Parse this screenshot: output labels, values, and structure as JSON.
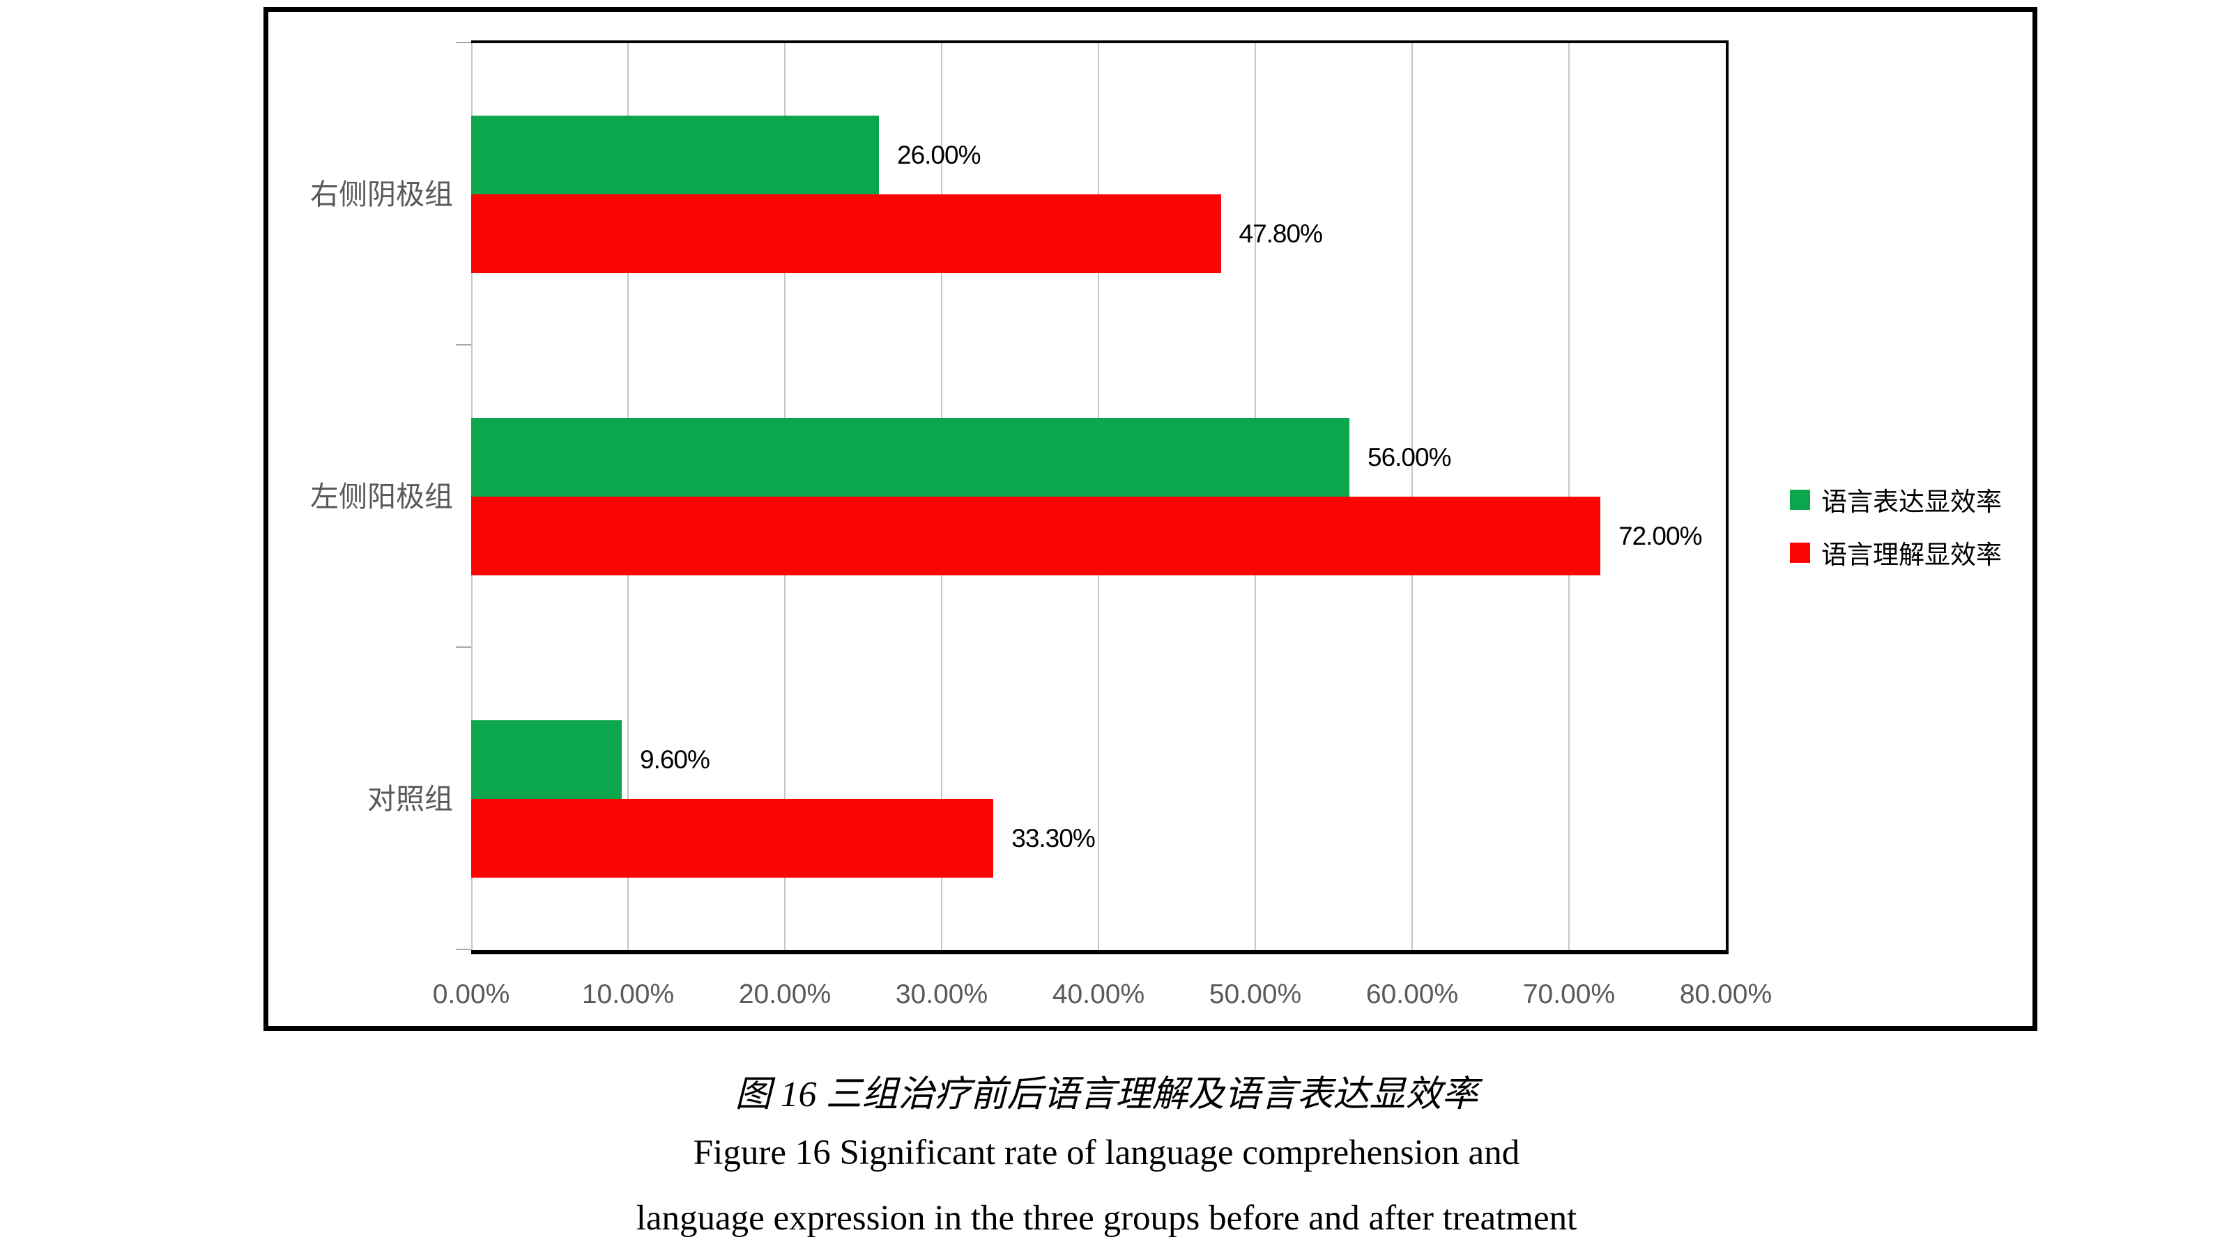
{
  "chart_data": {
    "type": "bar",
    "orientation": "horizontal",
    "title": "",
    "categories": [
      "右侧阴极组",
      "左侧阳极组",
      "对照组"
    ],
    "series": [
      {
        "name": "语言表达显效率",
        "color": "#0ca64c",
        "values": [
          26,
          56,
          9.6
        ],
        "labels": [
          "26.00%",
          "56.00%",
          "9.60%"
        ]
      },
      {
        "name": "语言理解显效率",
        "color": "#fb0505",
        "values": [
          47.8,
          72,
          33.3
        ],
        "labels": [
          "47.80%",
          "72.00%",
          "33.30%"
        ]
      }
    ],
    "x_axis": {
      "min": 0,
      "max": 80,
      "tick_step": 10,
      "tick_labels": [
        "0.00%",
        "10.00%",
        "20.00%",
        "30.00%",
        "40.00%",
        "50.00%",
        "60.00%",
        "70.00%",
        "80.00%"
      ]
    },
    "grid": true,
    "legend_position": "right"
  },
  "colors": {
    "series_green": "#0ca64c",
    "series_red": "#fb0505",
    "gridline": "#c6c6c6",
    "axis_text": "#595959",
    "border": "#000000"
  },
  "captions": {
    "chinese": "图 16 三组治疗前后语言理解及语言表达显效率",
    "english_line1": "Figure 16 Significant rate of language comprehension and",
    "english_line2": "language expression in the three groups before and after treatment"
  }
}
